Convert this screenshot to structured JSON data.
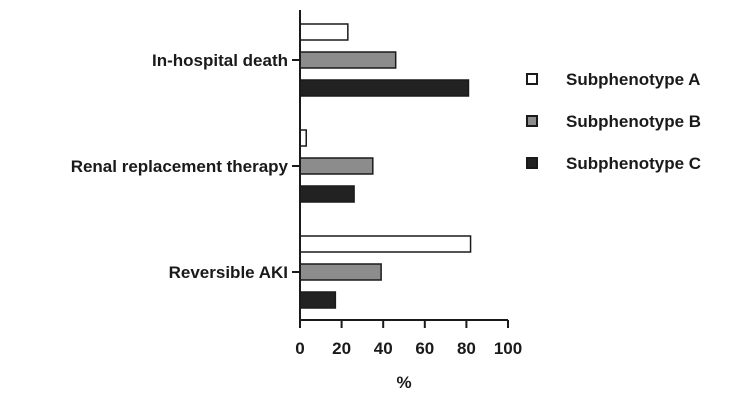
{
  "chart_data": {
    "type": "bar",
    "orientation": "horizontal",
    "categories": [
      "In-hospital death",
      "Renal replacement therapy",
      "Reversible AKI"
    ],
    "series": [
      {
        "name": "Subphenotype A",
        "color": "#ffffff",
        "values": [
          23,
          3,
          82
        ]
      },
      {
        "name": "Subphenotype B",
        "color": "#8c8c8c",
        "values": [
          46,
          35,
          39
        ]
      },
      {
        "name": "Subphenotype C",
        "color": "#222222",
        "values": [
          81,
          26,
          17
        ]
      }
    ],
    "x_ticks": [
      "0",
      "20",
      "40",
      "60",
      "80",
      "100"
    ],
    "xlim": [
      0,
      100
    ],
    "xlabel": "%",
    "ylabel": "",
    "title": "",
    "grid": false,
    "legend_position": "right"
  }
}
